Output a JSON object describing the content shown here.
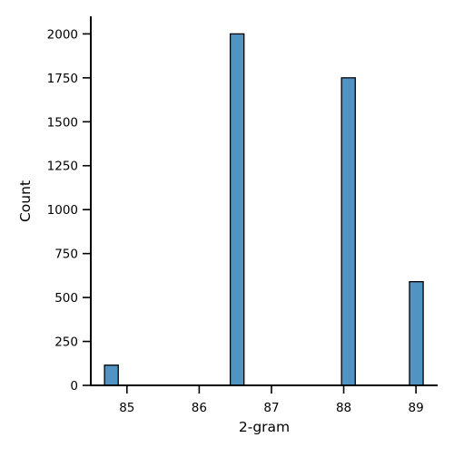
{
  "chart_data": {
    "type": "bar",
    "subtype": "histogram",
    "xlabel": "2-gram",
    "ylabel": "Count",
    "xlim": [
      84.5,
      89.3
    ],
    "ylim": [
      0,
      2100
    ],
    "xticks": [
      85,
      86,
      87,
      88,
      89
    ],
    "yticks": [
      0,
      250,
      500,
      750,
      1000,
      1250,
      1500,
      1750,
      2000
    ],
    "bin_width": 0.19,
    "bins": [
      {
        "x_start": 84.69,
        "x_end": 84.88,
        "count": 115
      },
      {
        "x_start": 86.43,
        "x_end": 86.62,
        "count": 2000
      },
      {
        "x_start": 87.97,
        "x_end": 88.16,
        "count": 1750
      },
      {
        "x_start": 88.91,
        "x_end": 89.1,
        "count": 590
      }
    ],
    "bar_color": "#5193c2",
    "edge_color": "#000000",
    "grid": false,
    "spines": [
      "left",
      "bottom"
    ]
  }
}
